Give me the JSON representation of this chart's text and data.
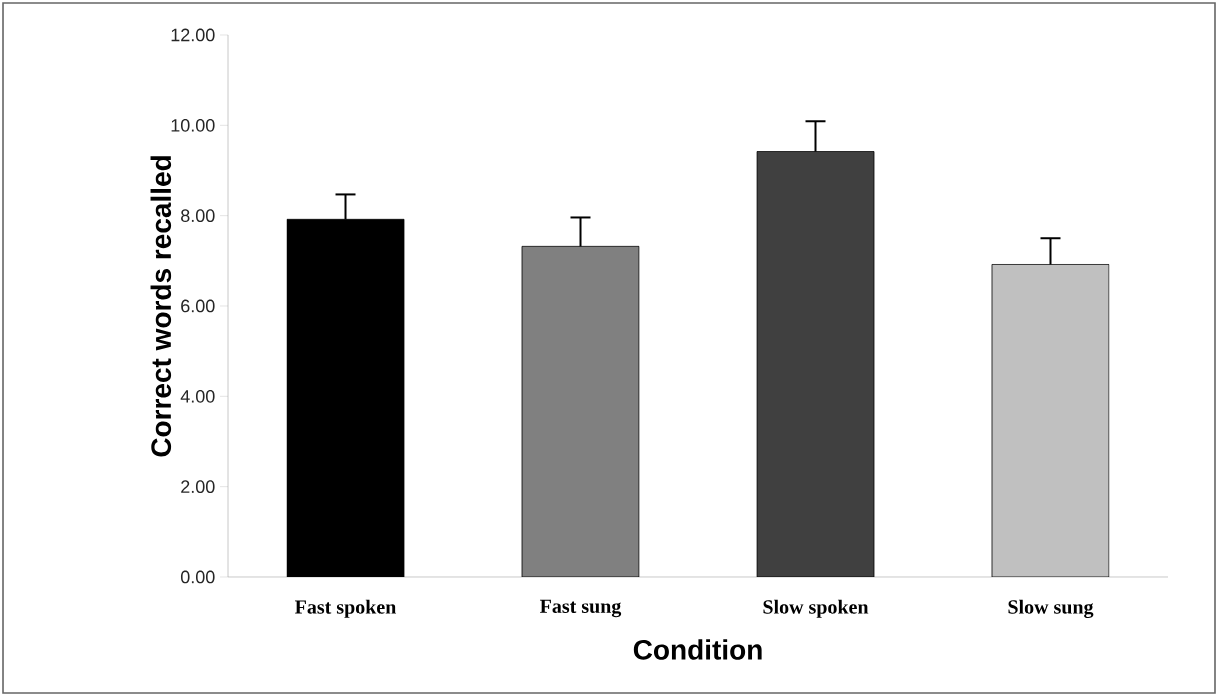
{
  "chart_data": {
    "type": "bar",
    "xlabel": "Condition",
    "ylabel": "Correct words recalled",
    "categories": [
      "Fast spoken",
      "Fast sung",
      "Slow spoken",
      "Slow sung"
    ],
    "values": [
      7.92,
      7.32,
      9.42,
      6.92
    ],
    "colors": [
      "#000000",
      "#808080",
      "#404040",
      "#c0c0c0"
    ],
    "errors": [
      [
        7.92,
        8.47
      ],
      [
        7.32,
        7.96
      ],
      [
        9.42,
        10.09
      ],
      [
        6.92,
        7.5
      ]
    ],
    "ylim": [
      0,
      12
    ],
    "yticks": [
      {
        "value": 0,
        "label": "0.00"
      },
      {
        "value": 2,
        "label": "2.00"
      },
      {
        "value": 4,
        "label": "4.00"
      },
      {
        "value": 6,
        "label": "6.00"
      },
      {
        "value": 8,
        "label": "8.00"
      },
      {
        "value": 10,
        "label": "10.00"
      },
      {
        "value": 12,
        "label": "12.00"
      }
    ],
    "grid": false
  }
}
